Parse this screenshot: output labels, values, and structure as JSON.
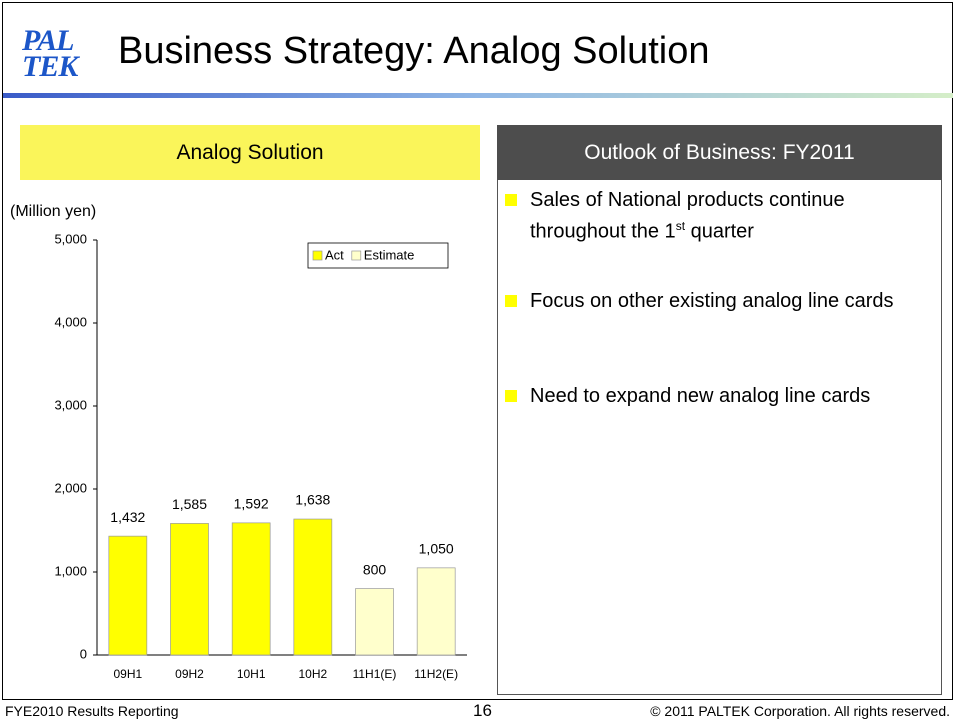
{
  "header": {
    "logo": [
      "PAL",
      "TEK"
    ],
    "title": "Business Strategy: Analog Solution"
  },
  "chart_data": {
    "type": "bar",
    "title": "Analog Solution",
    "ylabel": "(Million yen)",
    "categories": [
      "09H1",
      "09H2",
      "10H1",
      "10H2",
      "11H1(E)",
      "11H2(E)"
    ],
    "series": [
      {
        "name": "Act",
        "color": "#ffff00",
        "values": [
          1432,
          1585,
          1592,
          1638,
          null,
          null
        ],
        "value_labels": [
          "1,432",
          "1,585",
          "1,592",
          "1,638",
          null,
          null
        ]
      },
      {
        "name": "Estimate",
        "color": "#ffffcc",
        "values": [
          null,
          null,
          null,
          null,
          800,
          1050
        ],
        "value_labels": [
          null,
          null,
          null,
          null,
          "800",
          "1,050"
        ]
      }
    ],
    "ylim": [
      0,
      5000
    ],
    "yticks": [
      0,
      {
        "value": 1000,
        "label": "1,000"
      },
      {
        "value": 2000,
        "label": "2,000"
      },
      {
        "value": 3000,
        "label": "3,000"
      },
      {
        "value": 4000,
        "label": "4,000"
      },
      {
        "value": 5000,
        "label": "5,000"
      }
    ],
    "legend": "upper right"
  },
  "outlook": {
    "title": "Outlook of Business: FY2011",
    "items": [
      {
        "text": "Sales of National products continue throughout the 1",
        "sup": "st",
        "tail": " quarter"
      },
      {
        "text": "Focus on other existing analog line cards"
      },
      {
        "text": "Need to expand new analog line cards"
      }
    ]
  },
  "footer": {
    "left": "FYE2010 Results Reporting",
    "page": "16",
    "right": "© 2011 PALTEK Corporation. All rights reserved."
  }
}
